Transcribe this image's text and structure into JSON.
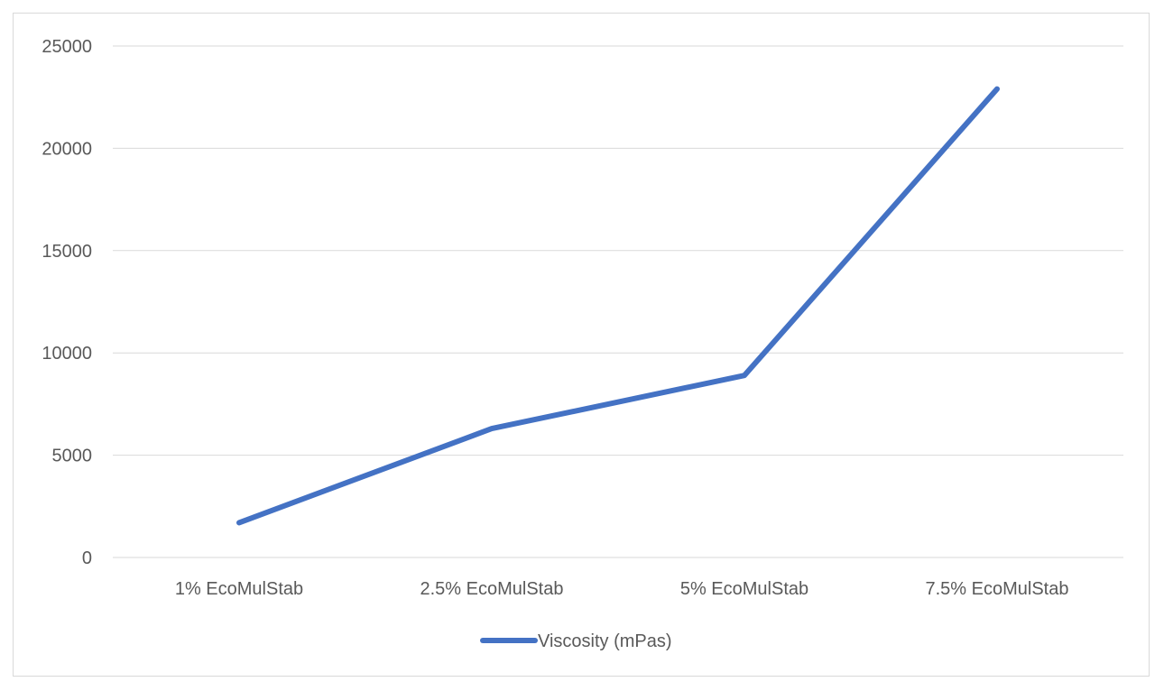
{
  "chart_data": {
    "type": "line",
    "title": "",
    "xlabel": "",
    "ylabel": "",
    "categories": [
      "1% EcoMulStab",
      "2.5% EcoMulStab",
      "5% EcoMulStab",
      "7.5% EcoMulStab"
    ],
    "series": [
      {
        "name": "Viscosity (mPas)",
        "values": [
          1700,
          6300,
          8900,
          22900
        ],
        "color": "#4472C4"
      }
    ],
    "ylim": [
      0,
      25000
    ],
    "yticks": [
      "0",
      "5000",
      "10000",
      "15000",
      "20000",
      "25000"
    ],
    "grid": true,
    "legend_position": "bottom"
  }
}
